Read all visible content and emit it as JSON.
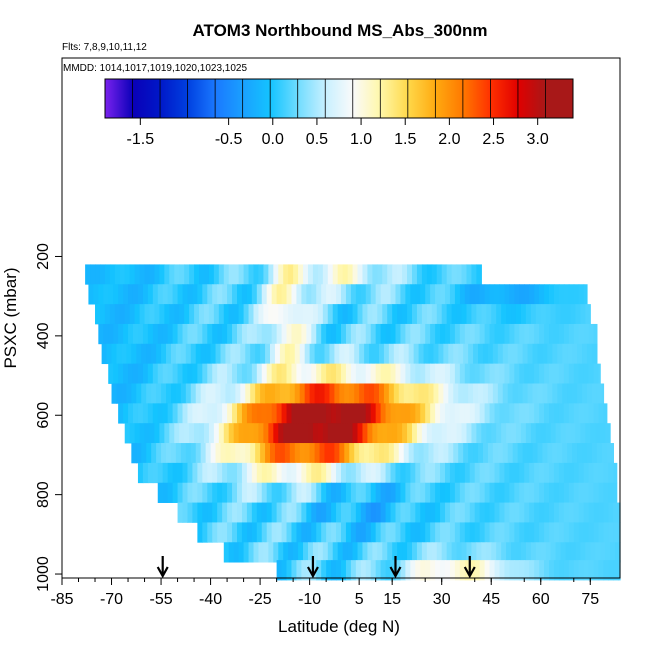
{
  "chart_data": {
    "type": "heatmap",
    "title": "ATOM3 Northbound MS_Abs_300nm",
    "flights_label": "Flts: 7,8,9,10,11,12",
    "dates_label": "MMDD: 1014,1017,1019,1020,1023,1025",
    "xlabel": "Latitude (deg N)",
    "ylabel": "PSXC (mbar)",
    "xlim": [
      -85,
      84
    ],
    "ylim": [
      1010,
      -300
    ],
    "x_ticks": [
      -85,
      -70,
      -55,
      -40,
      -25,
      -10,
      5,
      15,
      30,
      45,
      60,
      75
    ],
    "x_tick_labels": [
      "-85",
      "-70",
      "-55",
      "-40",
      "-25",
      "-10",
      "5",
      "15",
      "30",
      "45",
      "60",
      "75"
    ],
    "y_ticks": [
      200,
      400,
      600,
      800,
      1000
    ],
    "y_tick_labels": [
      "200",
      "400",
      "600",
      "800",
      "1000"
    ],
    "colorbar": {
      "min": -1.9,
      "max": 3.4,
      "colors": [
        "#7a22ee",
        "#0a00b8",
        "#0018c8",
        "#0040e0",
        "#1a78ff",
        "#1aa0ff",
        "#14c4ff",
        "#70dcff",
        "#c8f0ff",
        "#fafafa",
        "#fff7a8",
        "#ffd84a",
        "#ffaa10",
        "#ff7800",
        "#ff3000",
        "#e00000",
        "#a81818"
      ],
      "tick_values": [
        -1.5,
        -0.5,
        0.0,
        0.5,
        1.0,
        1.5,
        2.0,
        2.5,
        3.0
      ],
      "tick_labels": [
        "-1.5",
        "-0.5",
        "0.0",
        "0.5",
        "1.0",
        "1.5",
        "2.0",
        "2.5",
        "3.0"
      ]
    },
    "bands": [
      {
        "p": 245,
        "lat0": -78,
        "lat1": 42
      },
      {
        "p": 295,
        "lat0": -77,
        "lat1": 74
      },
      {
        "p": 345,
        "lat0": -75,
        "lat1": 75
      },
      {
        "p": 395,
        "lat0": -74,
        "lat1": 77
      },
      {
        "p": 445,
        "lat0": -73,
        "lat1": 77
      },
      {
        "p": 495,
        "lat0": -71,
        "lat1": 78
      },
      {
        "p": 545,
        "lat0": -70,
        "lat1": 79
      },
      {
        "p": 595,
        "lat0": -68,
        "lat1": 80
      },
      {
        "p": 645,
        "lat0": -66,
        "lat1": 81
      },
      {
        "p": 695,
        "lat0": -64,
        "lat1": 82
      },
      {
        "p": 745,
        "lat0": -62,
        "lat1": 83
      },
      {
        "p": 795,
        "lat0": -56,
        "lat1": 83
      },
      {
        "p": 845,
        "lat0": -50,
        "lat1": 84
      },
      {
        "p": 895,
        "lat0": -44,
        "lat1": 84
      },
      {
        "p": 945,
        "lat0": -36,
        "lat1": 84
      },
      {
        "p": 990,
        "lat0": -20,
        "lat1": 84
      }
    ],
    "flight_arrows": [
      -54.5,
      -9,
      16,
      38.5
    ]
  }
}
